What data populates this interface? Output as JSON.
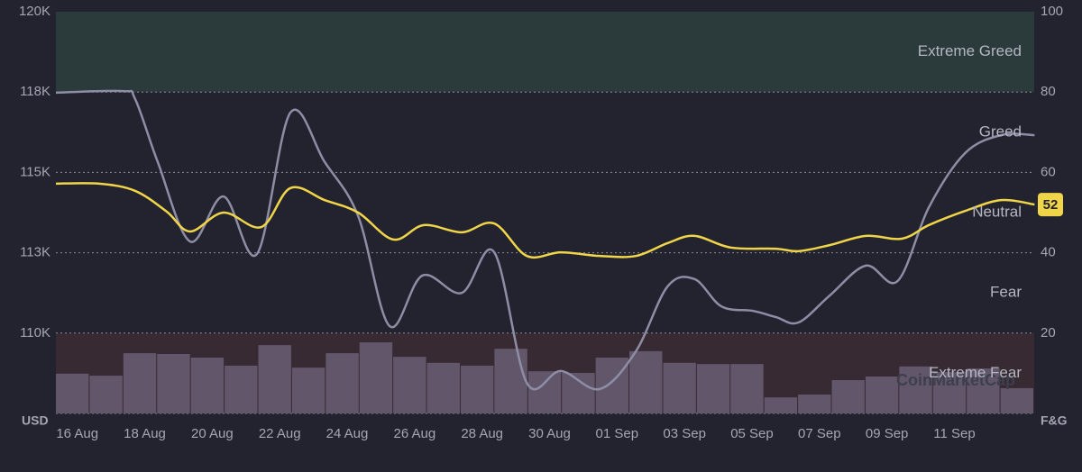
{
  "chart_data": {
    "type": "line",
    "ylabel": "USD",
    "y2label": "F&G",
    "watermark": "CoinMarketCap",
    "categories": [
      "16 Aug",
      null,
      "18 Aug",
      null,
      "20 Aug",
      null,
      "22 Aug",
      null,
      "24 Aug",
      null,
      "26 Aug",
      null,
      "28 Aug",
      null,
      "30 Aug",
      null,
      "01 Sep",
      null,
      "03 Sep",
      null,
      "05 Sep",
      null,
      "07 Sep",
      null,
      "09 Sep",
      null,
      "11 Sep",
      null,
      null
    ],
    "xlim": [
      -0.5,
      28.5
    ],
    "ylim": [
      107500,
      120000
    ],
    "yticks": [
      {
        "value": 120000,
        "label": "120K"
      },
      {
        "value": 117500,
        "label": "118K"
      },
      {
        "value": 115000,
        "label": "115K"
      },
      {
        "value": 112500,
        "label": "113K"
      },
      {
        "value": 110000,
        "label": "110K"
      }
    ],
    "y2lim": [
      0,
      100
    ],
    "y2ticks": [
      20,
      40,
      60,
      80,
      100
    ],
    "grid": true,
    "bands": [
      {
        "label": "Extreme Greed",
        "range": [
          80,
          100
        ],
        "color": "#2b3a3b"
      },
      {
        "label": "Greed",
        "range": [
          60,
          80
        ]
      },
      {
        "label": "Neutral",
        "range": [
          40,
          60
        ]
      },
      {
        "label": "Fear",
        "range": [
          20,
          40
        ]
      },
      {
        "label": "Extreme Fear",
        "range": [
          0,
          20
        ],
        "color": "#372a33"
      }
    ],
    "series": [
      {
        "axis": "y",
        "color": "#8d8ea6",
        "x": [
          -0.5,
          1.48,
          1.85,
          2.52,
          3.48,
          4.47,
          5.46,
          6.45,
          7.47,
          8.46,
          9.39,
          10.36,
          11.53,
          12.49,
          13.46,
          14.47,
          15.62,
          16.69,
          17.63,
          18.43,
          19.23,
          20.17,
          20.84,
          21.51,
          22.44,
          23.51,
          24.45,
          25.38,
          26.45,
          27.52,
          28.51
        ],
        "values": [
          117480,
          117530,
          117280,
          115320,
          112850,
          114250,
          112460,
          116860,
          115320,
          113640,
          110220,
          111790,
          111250,
          112520,
          108450,
          108820,
          108260,
          109430,
          111450,
          111680,
          110830,
          110690,
          110500,
          110330,
          111170,
          112100,
          111620,
          113920,
          115600,
          116160,
          116160
        ]
      },
      {
        "axis": "y2",
        "color": "#f0d54a",
        "x": [
          -0.5,
          0.78,
          1.85,
          2.79,
          3.48,
          4.47,
          5.59,
          6.45,
          7.47,
          8.46,
          9.5,
          10.41,
          11.53,
          12.49,
          13.46,
          14.47,
          15.62,
          16.69,
          17.63,
          18.43,
          19.5,
          20.84,
          21.51,
          22.44,
          23.51,
          24.58,
          25.38,
          26.45,
          27.52,
          28.51
        ],
        "values": [
          57.2,
          57.2,
          55.4,
          50.2,
          45.3,
          50,
          46.4,
          56.1,
          53.1,
          50,
          43.3,
          46.9,
          45.1,
          47.3,
          39.2,
          40.1,
          39.2,
          39.2,
          42.4,
          44.2,
          41.3,
          41,
          40.4,
          41.9,
          44.2,
          43.5,
          46.9,
          50.4,
          53.1,
          52
        ]
      },
      {
        "type": "bar",
        "axis": "y2",
        "color": "#62566a",
        "values": [
          9.9,
          9.4,
          15,
          14.8,
          13.9,
          11.9,
          17,
          11.4,
          15,
          17.7,
          14.1,
          12.6,
          11.9,
          16.1,
          10.5,
          10.1,
          13.9,
          15.5,
          12.6,
          12.3,
          12.3,
          4,
          4.7,
          8.3,
          9.2,
          11.7,
          10.3,
          11.2,
          6.3
        ]
      }
    ]
  }
}
